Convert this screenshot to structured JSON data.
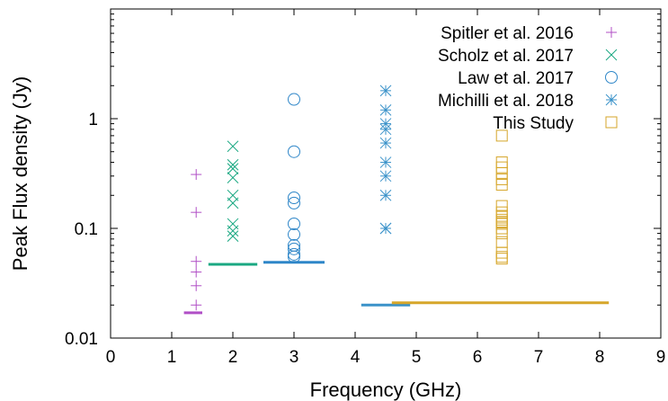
{
  "chart_data": {
    "type": "scatter",
    "title": "",
    "xlabel": "Frequency (GHz)",
    "ylabel": "Peak Flux density (Jy)",
    "xlim": [
      0,
      9
    ],
    "ylim": [
      0.01,
      10
    ],
    "y_scale": "log",
    "grid": false,
    "legend_position": "top-right",
    "x_ticks": [
      "0",
      "1",
      "2",
      "3",
      "4",
      "5",
      "6",
      "7",
      "8",
      "9"
    ],
    "y_ticks": [
      {
        "value": 0.01,
        "label": "0.01"
      },
      {
        "value": 0.1,
        "label": "0.1"
      },
      {
        "value": 1,
        "label": "1"
      }
    ],
    "series": [
      {
        "name": "Spitler et al. 2016",
        "marker": "plus",
        "color": "#b04fc6",
        "x": [
          1.4,
          1.4,
          1.4,
          1.4,
          1.4,
          1.4
        ],
        "y": [
          0.31,
          0.14,
          0.05,
          0.04,
          0.03,
          0.02
        ],
        "threshold": {
          "x": [
            1.2,
            1.5
          ],
          "y": 0.017
        }
      },
      {
        "name": "Scholz et al. 2017",
        "marker": "cross",
        "color": "#1aa882",
        "x": [
          2.0,
          2.0,
          2.0,
          2.0,
          2.0,
          2.0,
          2.0,
          2.0,
          2.0
        ],
        "y": [
          0.56,
          0.38,
          0.35,
          0.29,
          0.2,
          0.17,
          0.11,
          0.095,
          0.085
        ],
        "threshold": {
          "x": [
            1.6,
            2.4
          ],
          "y": 0.047
        }
      },
      {
        "name": "Law et al. 2017",
        "marker": "circle",
        "color": "#2e86c8",
        "x": [
          3.0,
          3.0,
          3.0,
          3.0,
          3.0,
          3.0,
          3.0,
          3.0,
          3.0,
          3.0
        ],
        "y": [
          1.5,
          0.5,
          0.19,
          0.17,
          0.11,
          0.088,
          0.07,
          0.065,
          0.058,
          0.055
        ],
        "threshold": {
          "x": [
            2.5,
            3.5
          ],
          "y": 0.049
        }
      },
      {
        "name": "Michilli et al. 2018",
        "marker": "star",
        "color": "#3a92c9",
        "x": [
          4.5,
          4.5,
          4.5,
          4.5,
          4.5,
          4.5,
          4.5,
          4.5,
          4.5,
          4.5
        ],
        "y": [
          1.8,
          1.2,
          0.9,
          0.8,
          0.6,
          0.4,
          0.3,
          0.2,
          0.1,
          0.1
        ],
        "threshold": {
          "x": [
            4.1,
            4.9
          ],
          "y": 0.02
        }
      },
      {
        "name": "This Study",
        "marker": "square",
        "color": "#d6a62a",
        "x": [
          6.4,
          6.4,
          6.4,
          6.4,
          6.4,
          6.4,
          6.4,
          6.4,
          6.4,
          6.4,
          6.4,
          6.4,
          6.4,
          6.4,
          6.4,
          6.4,
          6.4,
          6.4
        ],
        "y": [
          0.7,
          0.4,
          0.36,
          0.32,
          0.28,
          0.25,
          0.16,
          0.14,
          0.13,
          0.12,
          0.115,
          0.11,
          0.1,
          0.09,
          0.075,
          0.06,
          0.055,
          0.053
        ],
        "threshold": {
          "x": [
            4.6,
            8.15
          ],
          "y": 0.021
        }
      }
    ]
  }
}
